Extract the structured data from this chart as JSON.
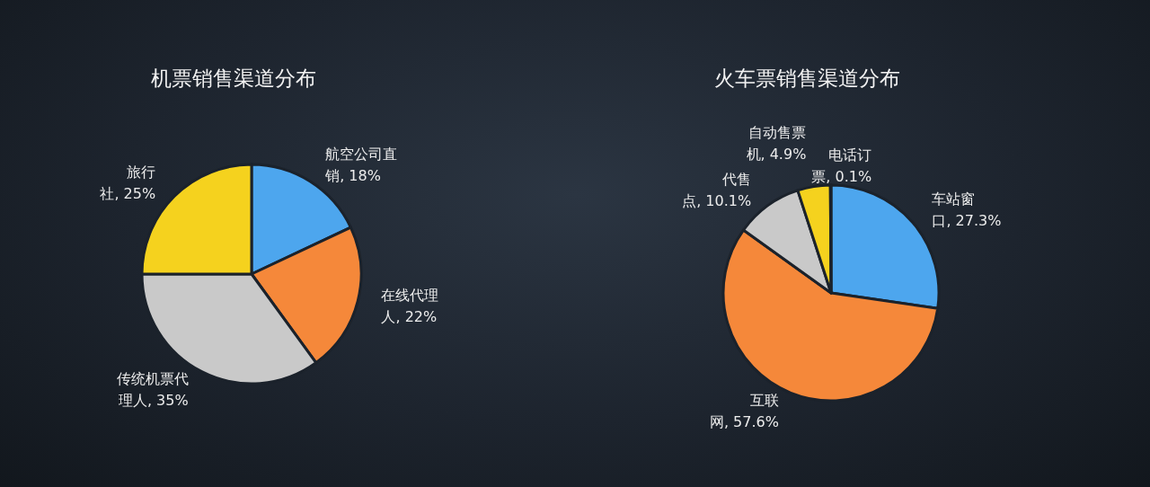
{
  "chart_data": [
    {
      "type": "pie",
      "title": "机票销售渠道分布",
      "categories": [
        "航空公司直销",
        "在线代理人",
        "传统机票代理人",
        "旅行社"
      ],
      "values": [
        18,
        22,
        35,
        25
      ],
      "value_labels": [
        "18%",
        "22%",
        "35%",
        "25%"
      ],
      "colors": [
        "#4da6ee",
        "#f5883a",
        "#c9c9c9",
        "#f5d21e"
      ]
    },
    {
      "type": "pie",
      "title": "火车票销售渠道分布",
      "categories": [
        "车站窗口",
        "互联网",
        "代售点",
        "自动售票机",
        "电话订票"
      ],
      "values": [
        27.3,
        57.6,
        10.1,
        4.9,
        0.1
      ],
      "value_labels": [
        "27.3%",
        "57.6%",
        "10.1%",
        "4.9%",
        "0.1%"
      ],
      "colors": [
        "#4da6ee",
        "#f5883a",
        "#c9c9c9",
        "#f5d21e",
        "#4472c4"
      ]
    }
  ]
}
